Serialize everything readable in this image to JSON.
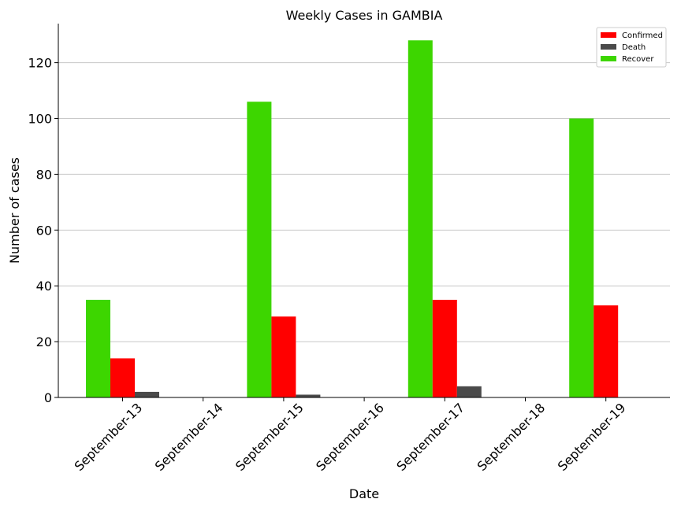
{
  "chart_data": {
    "type": "bar",
    "title": "Weekly Cases in GAMBIA",
    "xlabel": "Date",
    "ylabel": "Number of cases",
    "categories": [
      "September-13",
      "September-14",
      "September-15",
      "September-16",
      "September-17",
      "September-18",
      "September-19"
    ],
    "series": [
      {
        "name": "Recover",
        "color": "#3dd600",
        "values": [
          35,
          0,
          106,
          0,
          128,
          0,
          100
        ]
      },
      {
        "name": "Confirmed",
        "color": "#ff0000",
        "values": [
          14,
          0,
          29,
          0,
          35,
          0,
          33
        ]
      },
      {
        "name": "Death",
        "color": "#4a4a4a",
        "values": [
          2,
          0,
          1,
          0,
          4,
          0,
          0
        ]
      }
    ],
    "legend_order": [
      "Confirmed",
      "Death",
      "Recover"
    ],
    "ylim": [
      0,
      134
    ],
    "yticks": [
      0,
      20,
      40,
      60,
      80,
      100,
      120
    ],
    "grid": "horizontal",
    "legend_position": "top-right"
  }
}
